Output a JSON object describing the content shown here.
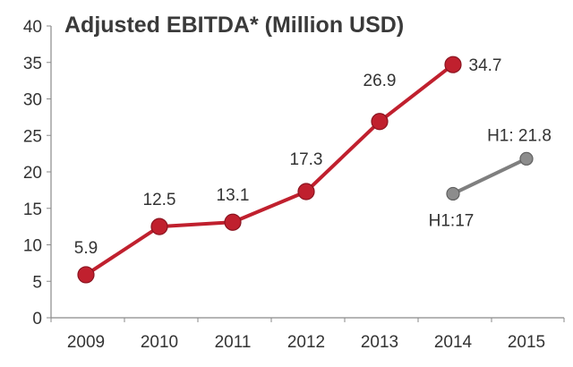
{
  "chart_data": {
    "type": "line",
    "title": "Adjusted EBITDA*  (Million USD)",
    "xlabel": "",
    "ylabel": "",
    "ylim": [
      0,
      40
    ],
    "yticks": [
      0,
      5,
      10,
      15,
      20,
      25,
      30,
      35,
      40
    ],
    "categories": [
      "2009",
      "2010",
      "2011",
      "2012",
      "2013",
      "2014",
      "2015"
    ],
    "grid": false,
    "series": [
      {
        "name": "Adjusted EBITDA",
        "color": "#c0202e",
        "marker_color": "#c0202e",
        "x": [
          "2009",
          "2010",
          "2011",
          "2012",
          "2013",
          "2014"
        ],
        "values": [
          5.9,
          12.5,
          13.1,
          17.3,
          26.9,
          34.7
        ],
        "labels": [
          "5.9",
          "12.5",
          "13.1",
          "17.3",
          "26.9",
          "34.7"
        ]
      },
      {
        "name": "H1",
        "color": "#7f7f7f",
        "marker_color": "#8c8c8c",
        "x": [
          "2014",
          "2015"
        ],
        "values": [
          17,
          21.8
        ],
        "labels": [
          "H1:17",
          "H1: 21.8"
        ]
      }
    ]
  }
}
